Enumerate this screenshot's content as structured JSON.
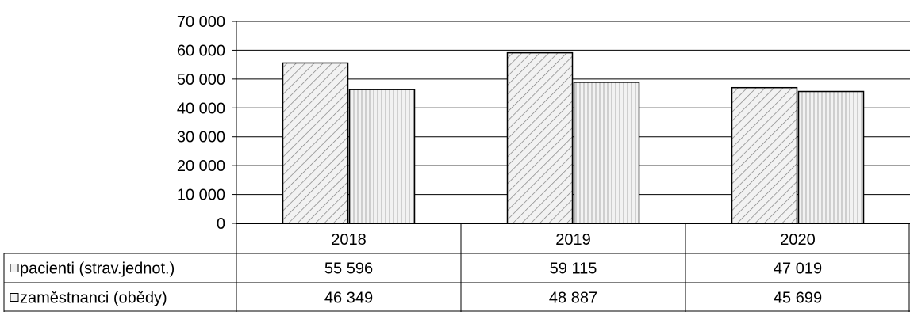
{
  "chart_data": {
    "type": "bar",
    "categories": [
      "2018",
      "2019",
      "2020"
    ],
    "series": [
      {
        "name": "pacienti (strav.jednot.)",
        "values": [
          55596,
          59115,
          47019
        ],
        "labels": [
          "55 596",
          "59 115",
          "47 019"
        ],
        "pattern": "diagonal-hatch"
      },
      {
        "name": "zaměstnanci (obědy)",
        "values": [
          46349,
          48887,
          45699
        ],
        "labels": [
          "46 349",
          "48 887",
          "45 699"
        ],
        "pattern": "vertical-lines"
      }
    ],
    "ylim": [
      0,
      70000
    ],
    "yticks": [
      0,
      10000,
      20000,
      30000,
      40000,
      50000,
      60000,
      70000
    ],
    "ytick_labels": [
      "0",
      "10 000",
      "20 000",
      "30 000",
      "40 000",
      "50 000",
      "60 000",
      "70 000"
    ],
    "grid": true,
    "data_table": true,
    "colors": {
      "bar_fill": "#f2f2f2",
      "pattern": "#7f7f7f",
      "line": "#000000"
    }
  }
}
